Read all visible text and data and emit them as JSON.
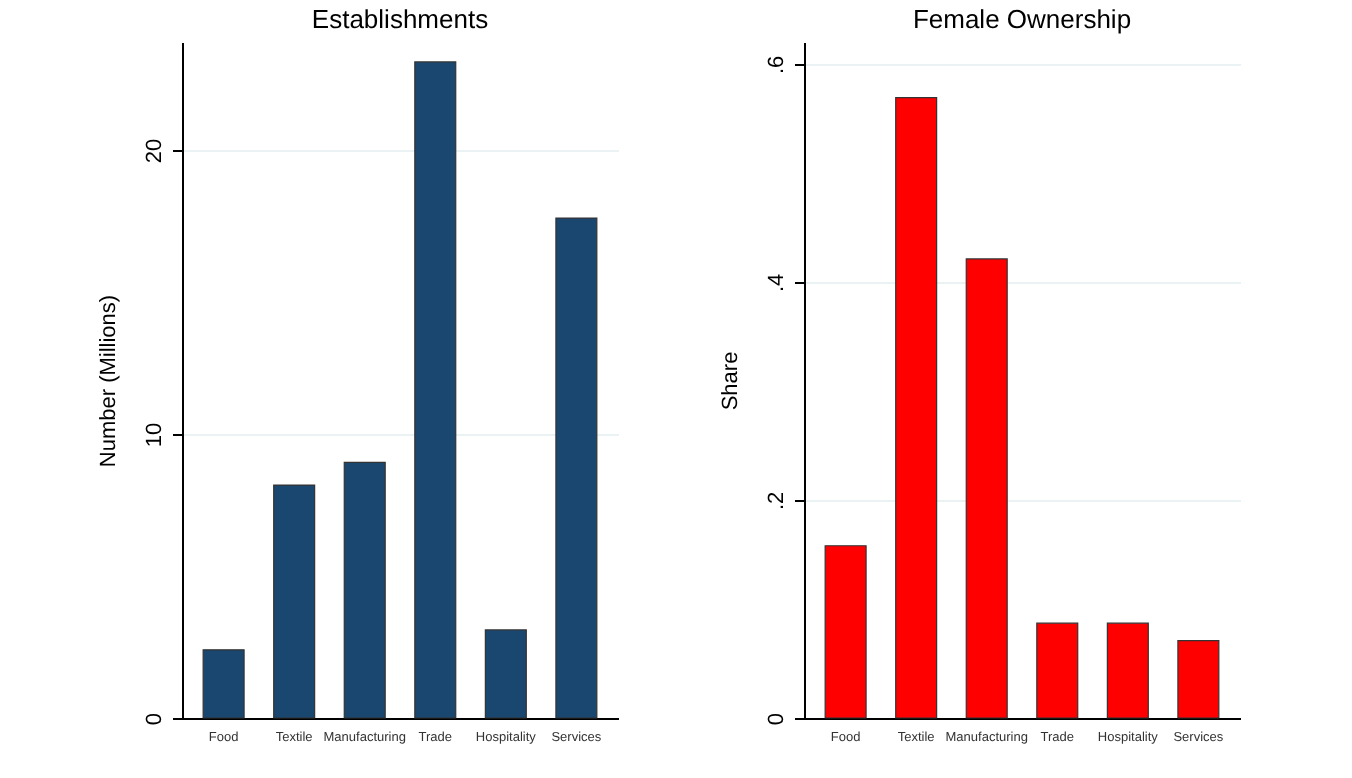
{
  "chart_data": [
    {
      "type": "bar",
      "title": "Establishments",
      "ylabel": "Number (Millions)",
      "categories": [
        "Food",
        "Textile",
        "Manufacturing",
        "Trade",
        "Hospitality",
        "Services"
      ],
      "values": [
        2.4,
        8.2,
        9.0,
        23.1,
        3.1,
        17.6
      ],
      "color": "#1a476f",
      "ylim": [
        0,
        23.8
      ],
      "yticks": [
        0,
        10,
        20
      ],
      "grid": "y"
    },
    {
      "type": "bar",
      "title": "Female Ownership",
      "ylabel": "Share",
      "categories": [
        "Food",
        "Textile",
        "Manufacturing",
        "Trade",
        "Hospitality",
        "Services"
      ],
      "values": [
        0.158,
        0.569,
        0.421,
        0.087,
        0.087,
        0.071
      ],
      "color": "#ff0000",
      "ylim": [
        0,
        0.62
      ],
      "yticks": [
        0,
        {
          "value": 0.2,
          "label": ".2"
        },
        {
          "value": 0.4,
          "label": ".4"
        },
        {
          "value": 0.6,
          "label": ".6"
        }
      ],
      "grid": "y"
    }
  ]
}
